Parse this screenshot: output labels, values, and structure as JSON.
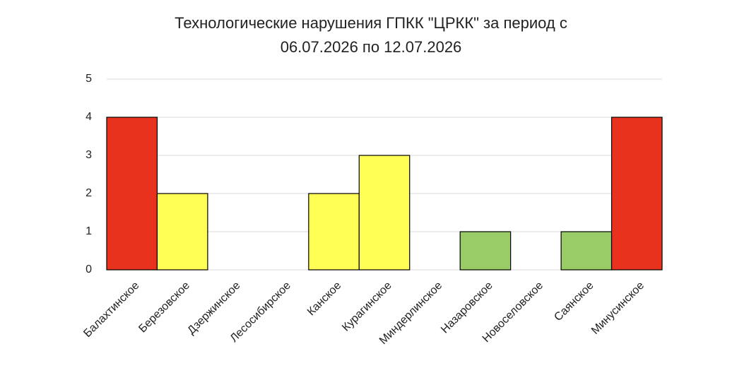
{
  "chart_data": {
    "type": "bar",
    "title": "Технологические нарушения ГПКК \"ЦРКК\" за период с 06.07.2026 по 12.07.2026",
    "categories": [
      "Балахтинское",
      "Березовское",
      "Дзержинское",
      "Лесосибирское",
      "Канское",
      "Курагинское",
      "Миндерлинское",
      "Назаровское",
      "Новоселовское",
      "Саянское",
      "Минусинское"
    ],
    "values": [
      4,
      2,
      0,
      0,
      2,
      3,
      0,
      1,
      0,
      1,
      4
    ],
    "colors": [
      "#e8321e",
      "#ffff55",
      "#ffff55",
      "#ffff55",
      "#ffff55",
      "#ffff55",
      "#99cc66",
      "#99cc66",
      "#99cc66",
      "#99cc66",
      "#e8321e"
    ],
    "ylim": [
      0,
      5
    ],
    "yticks": [
      0,
      1,
      2,
      3,
      4,
      5
    ],
    "grid": true
  }
}
